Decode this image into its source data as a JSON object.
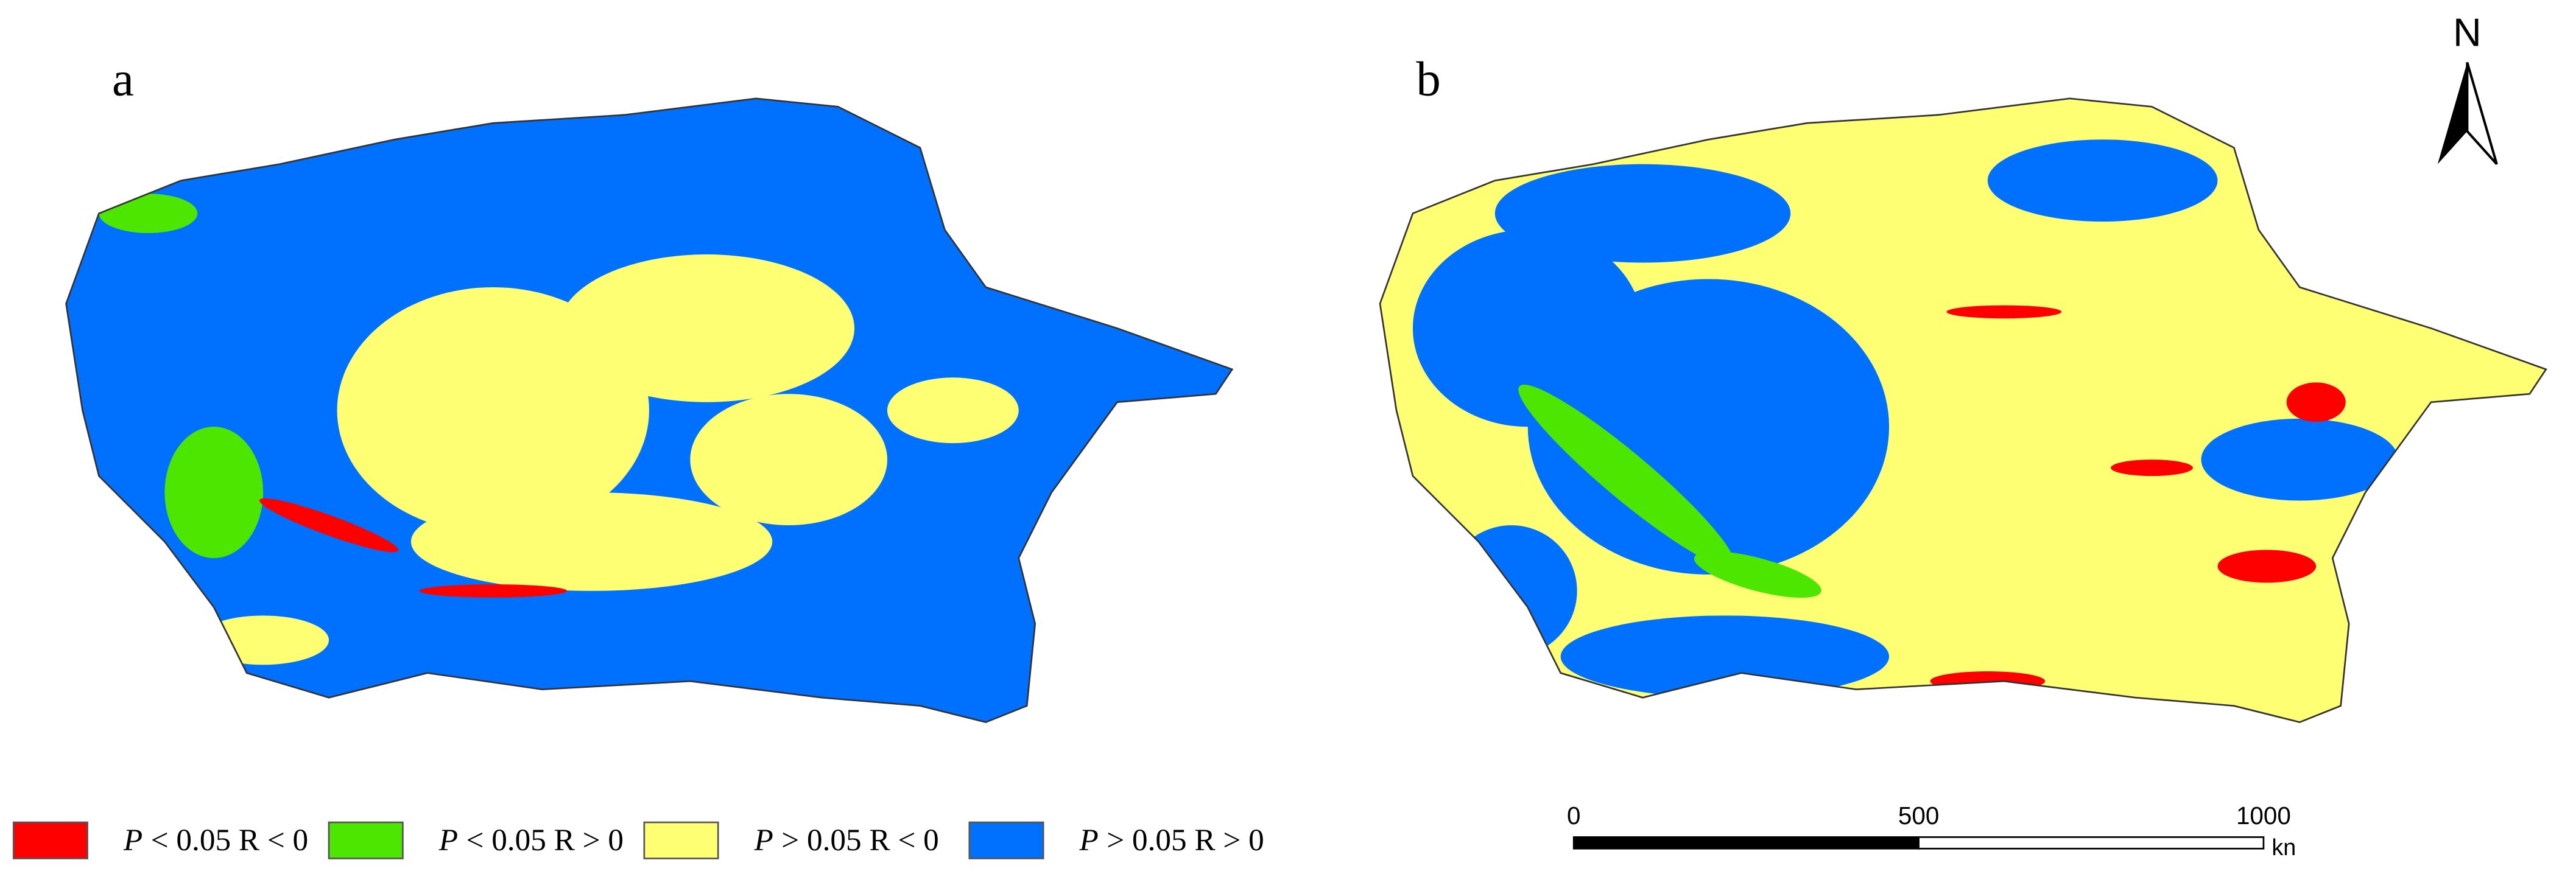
{
  "panels": [
    {
      "label": "a"
    },
    {
      "label": "b"
    }
  ],
  "legend": [
    {
      "color": "#ff0000",
      "variable": "P",
      "condition": "< 0.05  R < 0"
    },
    {
      "color": "#4ce600",
      "variable": "P",
      "condition": "< 0.05  R > 0"
    },
    {
      "color": "#ffff73",
      "variable": "P",
      "condition": "> 0.05  R < 0"
    },
    {
      "color": "#0070ff",
      "variable": "P",
      "condition": "> 0.05  R > 0"
    }
  ],
  "scale_bar": {
    "ticks": [
      0,
      500,
      1000
    ],
    "unit": "kn"
  },
  "north_arrow": "N"
}
